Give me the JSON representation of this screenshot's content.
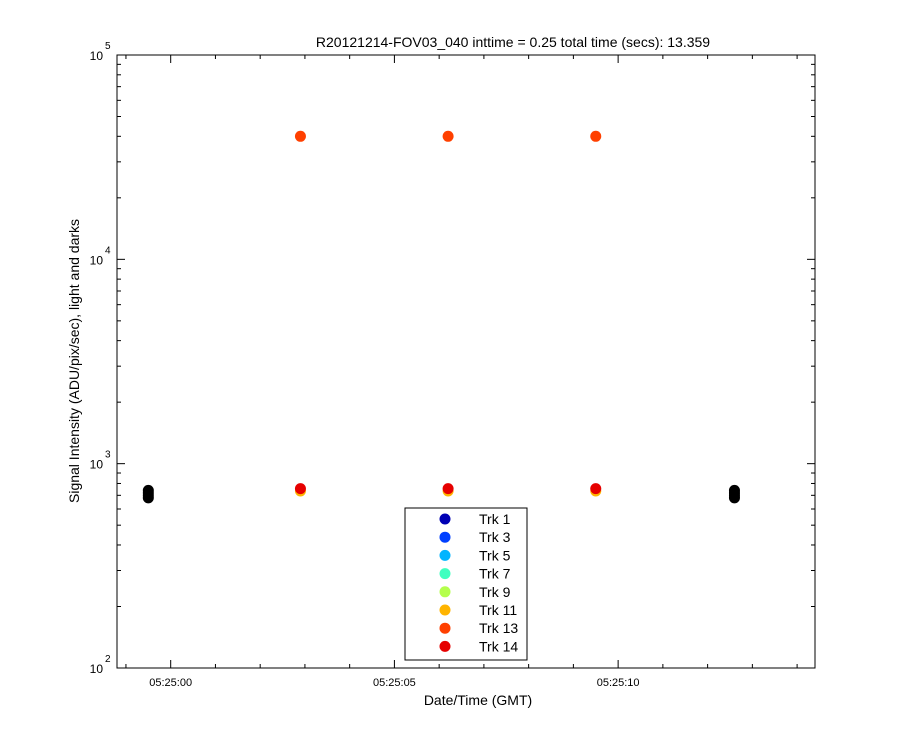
{
  "chart_data": {
    "type": "scatter",
    "title": "R20121214-FOV03_040 inttime = 0.25 total time (secs): 13.359",
    "xlabel": "Date/Time (GMT)",
    "ylabel": "Signal Intensity (ADU/pix/sec), light and darks",
    "x_ticks": [
      "05:25:00",
      "05:25:05",
      "05:25:10"
    ],
    "x_tick_seconds": [
      0,
      5,
      10
    ],
    "xlim_seconds": [
      -1.2,
      14.4
    ],
    "y_scale": "log",
    "ylim": [
      100,
      100000
    ],
    "y_ticks": [
      {
        "base": "10",
        "exp": "2"
      },
      {
        "base": "10",
        "exp": "3"
      },
      {
        "base": "10",
        "exp": "4"
      },
      {
        "base": "10",
        "exp": "5"
      }
    ],
    "grid": false,
    "legend_position": "bottom-center",
    "series": [
      {
        "name": "Trk 1",
        "color": "#0000b4",
        "points": []
      },
      {
        "name": "Trk 3",
        "color": "#0040ff",
        "points": []
      },
      {
        "name": "Trk 5",
        "color": "#00b4ff",
        "points": []
      },
      {
        "name": "Trk 7",
        "color": "#40ffc0",
        "points": []
      },
      {
        "name": "Trk 9",
        "color": "#b4ff4c",
        "points": []
      },
      {
        "name": "Trk 11",
        "color": "#ffb400",
        "points": [
          [
            2.9,
            735
          ],
          [
            6.2,
            735
          ],
          [
            9.5,
            735
          ]
        ]
      },
      {
        "name": "Trk 13",
        "color": "#ff4000",
        "points": [
          [
            2.9,
            40000
          ],
          [
            6.2,
            40000
          ],
          [
            9.5,
            40000
          ]
        ]
      },
      {
        "name": "Trk 14",
        "color": "#e60000",
        "points": [
          [
            2.9,
            755
          ],
          [
            6.2,
            755
          ],
          [
            9.5,
            755
          ]
        ]
      }
    ],
    "dark_series": {
      "color": "#000000",
      "points": [
        [
          -0.5,
          680
        ],
        [
          -0.5,
          700
        ],
        [
          -0.5,
          720
        ],
        [
          -0.5,
          740
        ],
        [
          12.6,
          680
        ],
        [
          12.6,
          700
        ],
        [
          12.6,
          720
        ],
        [
          12.6,
          740
        ]
      ]
    }
  }
}
